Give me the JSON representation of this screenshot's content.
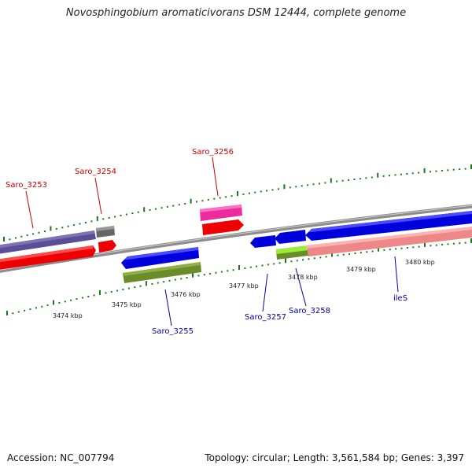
{
  "title": "Novosphingobium aromaticivorans DSM 12444, complete genome",
  "accession": "Accession: NC_007794",
  "topology": "Topology: circular; Length: 3,561,584 bp; Genes: 3,397",
  "colors": {
    "backbone": "#8c8c8c",
    "tick": "#1a7a1a",
    "label_forward": "#cc0000",
    "label_reverse": "#0000aa"
  },
  "scale_labels": [
    "3474 kbp",
    "3475 kbp",
    "3476 kbp",
    "3477 kbp",
    "3478 kbp",
    "3479 kbp",
    "3480 kbp"
  ],
  "genes": [
    {
      "id": "saro3253",
      "label": "Saro_3253",
      "strand": "forward",
      "color": "#5a4e96"
    },
    {
      "id": "saro3253r",
      "label": "",
      "strand": "forward",
      "color": "#ee0000"
    },
    {
      "id": "saro3254",
      "label": "Saro_3254",
      "strand": "forward",
      "color": "#666666"
    },
    {
      "id": "saro3254r",
      "label": "",
      "strand": "forward",
      "color": "#ee0000"
    },
    {
      "id": "saro3256",
      "label": "Saro_3256",
      "strand": "forward",
      "color": "#ee2a9e"
    },
    {
      "id": "saro3256r",
      "label": "",
      "strand": "forward",
      "color": "#ee0000"
    },
    {
      "id": "saro3255",
      "label": "Saro_3255",
      "strand": "reverse",
      "color": "#0000dd"
    },
    {
      "id": "saro3255g",
      "label": "",
      "strand": "reverse",
      "color": "#6b8c2a"
    },
    {
      "id": "saro3257",
      "label": "Saro_3257",
      "strand": "reverse",
      "color": "#0000dd"
    },
    {
      "id": "saro3258",
      "label": "Saro_3258",
      "strand": "reverse",
      "color": "#0000dd"
    },
    {
      "id": "saro3258g",
      "label": "",
      "strand": "reverse",
      "color": "#88dd22"
    },
    {
      "id": "iles",
      "label": "ileS",
      "strand": "reverse",
      "color": "#0000dd"
    },
    {
      "id": "ilesp",
      "label": "",
      "strand": "reverse",
      "color": "#ee8888"
    }
  ]
}
